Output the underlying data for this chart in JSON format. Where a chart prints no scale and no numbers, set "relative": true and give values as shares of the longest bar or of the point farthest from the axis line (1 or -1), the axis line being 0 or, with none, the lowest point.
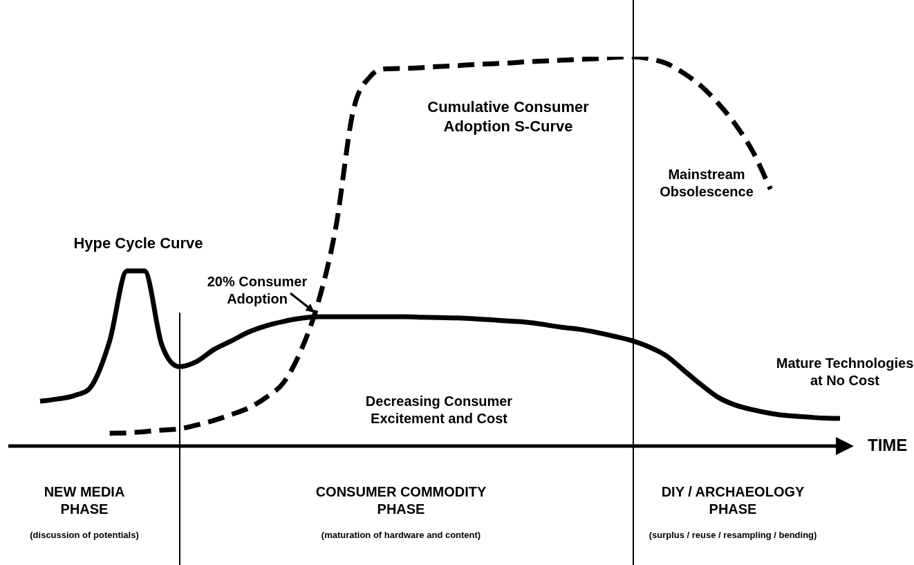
{
  "chart_data": {
    "type": "line",
    "relative": true,
    "xlabel": "TIME",
    "legend": false,
    "marker": "none",
    "categories": [
      null,
      null,
      null,
      null,
      null,
      null,
      null,
      null,
      null,
      null,
      null,
      null,
      null,
      null,
      null,
      null,
      null,
      null,
      null,
      null,
      null,
      null,
      null,
      null,
      null,
      null,
      null,
      null,
      null,
      null,
      null,
      null,
      null,
      null,
      null,
      null,
      null,
      null,
      null,
      null,
      null,
      null,
      null,
      null,
      null,
      null,
      null
    ],
    "series": [
      {
        "name": "Hype Cycle Curve",
        "color": "#000000",
        "line_style": "solid",
        "values": [
          0.115,
          0.121,
          0.13,
          0.157,
          0.27,
          0.45,
          0.45,
          0.26,
          0.204,
          0.217,
          0.248,
          0.27,
          0.293,
          0.309,
          0.32,
          0.328,
          0.332,
          0.332,
          0.332,
          0.332,
          0.332,
          0.332,
          0.331,
          0.33,
          0.329,
          0.327,
          0.324,
          0.321,
          0.318,
          0.312,
          0.305,
          0.3,
          0.292,
          0.282,
          0.271,
          0.255,
          0.232,
          0.195,
          0.158,
          0.125,
          0.105,
          0.093,
          0.084,
          0.078,
          0.075,
          0.072,
          0.071
        ]
      },
      {
        "name": "Cumulative Consumer Adoption S-Curve",
        "color": "#000000",
        "line_style": "dashed",
        "values": [
          null,
          null,
          null,
          null,
          0.033,
          0.034,
          0.037,
          0.041,
          0.044,
          0.054,
          0.066,
          0.081,
          0.098,
          0.125,
          0.163,
          0.245,
          0.37,
          0.56,
          0.86,
          0.95,
          0.969,
          0.97,
          0.972,
          0.975,
          0.977,
          0.98,
          0.982,
          0.984,
          0.987,
          0.989,
          0.991,
          0.993,
          0.995,
          0.998,
          1,
          0.995,
          0.983,
          0.958,
          0.925,
          0.88,
          0.825,
          0.755,
          0.66,
          null,
          null,
          null,
          null
        ]
      }
    ],
    "annotations": [
      "20% Consumer Adoption",
      "Decreasing Consumer Excitement and Cost",
      "Mainstream Obsolescence",
      "Mature Technologies at No Cost",
      "NEW MEDIA PHASE",
      "(discussion of potentials)",
      "CONSUMER COMMODITY PHASE",
      "(maturation of hardware and content)",
      "DIY / ARCHAEOLOGY PHASE",
      "(surplus / reuse / resampling / bending)"
    ]
  }
}
